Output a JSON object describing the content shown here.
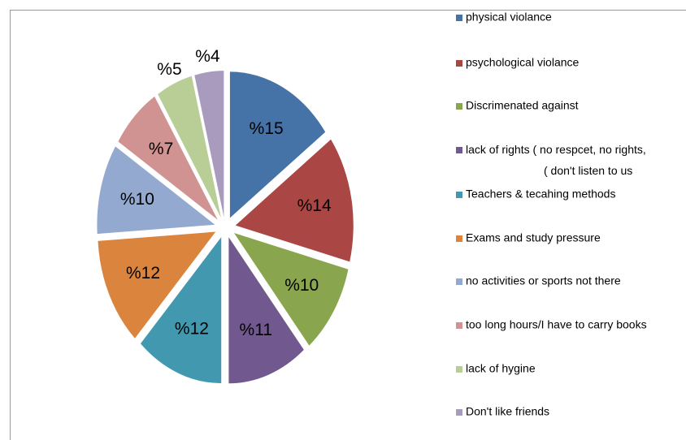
{
  "chart_data": {
    "type": "pie",
    "categories": [
      "physical violance",
      "psychological violance",
      "Discrimenated against",
      "lack of rights ( no respcet, no rights,\n( don't listen to us",
      "Teachers & tecahing methods",
      "Exams and study pressure",
      "no activities or sports not there",
      "too long hours/I have to carry books",
      "lack of hygine",
      "Don't like friends"
    ],
    "values": [
      15,
      14,
      10,
      11,
      12,
      12,
      10,
      7,
      5,
      4
    ],
    "value_labels": [
      "%15",
      "%14",
      "%10",
      "%11",
      "%12",
      "%12",
      "%10",
      "%7",
      "%5",
      "%4"
    ],
    "colors": [
      "#4572a7",
      "#aa4643",
      "#89a54e",
      "#71588f",
      "#4198af",
      "#db843d",
      "#93a9cf",
      "#d19392",
      "#b9cd96",
      "#a99bbd"
    ]
  }
}
